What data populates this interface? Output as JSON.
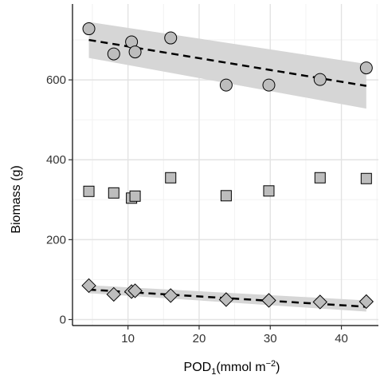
{
  "colors": {
    "marker_fill": "#bdbdbd",
    "marker_stroke": "#000000",
    "band_fill": "#d6d6d6",
    "trend_line": "#000000",
    "grid_major": "#e3e3e3",
    "grid_minor": "#f2f2f2"
  },
  "chart_data": {
    "type": "scatter",
    "xlabel": "POD",
    "xlabel_subscript": "1",
    "xlabel_units": "(mmol m",
    "xlabel_units_exponent": "−2",
    "xlabel_units_close": ")",
    "ylabel": "Biomass (g)",
    "xlim": [
      2.2,
      45.2
    ],
    "ylim": [
      -15,
      790
    ],
    "x_ticks": [
      10,
      20,
      30,
      40
    ],
    "y_ticks": [
      0,
      200,
      400,
      600
    ],
    "x_minor_ticks": [
      5,
      15,
      25,
      35,
      45
    ],
    "y_minor_ticks": [
      100,
      300,
      500,
      700
    ],
    "grid": true,
    "series": [
      {
        "marker": "circle",
        "points": [
          [
            4.5,
            728
          ],
          [
            8,
            665
          ],
          [
            10.5,
            695
          ],
          [
            11,
            670
          ],
          [
            16,
            705
          ],
          [
            23.8,
            587
          ],
          [
            29.8,
            587
          ],
          [
            37,
            601
          ],
          [
            43.5,
            630
          ]
        ],
        "trend": {
          "x": [
            4.5,
            43.5
          ],
          "y": [
            700,
            585
          ]
        },
        "band": {
          "x": [
            4.5,
            43.5
          ],
          "lower": [
            655,
            528
          ],
          "upper": [
            745,
            640
          ]
        }
      },
      {
        "marker": "square",
        "points": [
          [
            4.5,
            321
          ],
          [
            8,
            317
          ],
          [
            10.5,
            304
          ],
          [
            11,
            309
          ],
          [
            16,
            355
          ],
          [
            23.8,
            310
          ],
          [
            29.8,
            322
          ],
          [
            37,
            355
          ],
          [
            43.5,
            353
          ]
        ]
      },
      {
        "marker": "diamond",
        "points": [
          [
            4.5,
            85
          ],
          [
            8,
            63
          ],
          [
            10.5,
            70
          ],
          [
            11,
            72
          ],
          [
            16,
            60
          ],
          [
            23.8,
            50
          ],
          [
            29.8,
            48
          ],
          [
            37,
            44
          ],
          [
            43.5,
            45
          ]
        ],
        "trend": {
          "x": [
            4.5,
            43.5
          ],
          "y": [
            75,
            32
          ]
        },
        "band": {
          "x": [
            4.5,
            43.5
          ],
          "lower": [
            66,
            20
          ],
          "upper": [
            86,
            48
          ]
        }
      }
    ]
  }
}
